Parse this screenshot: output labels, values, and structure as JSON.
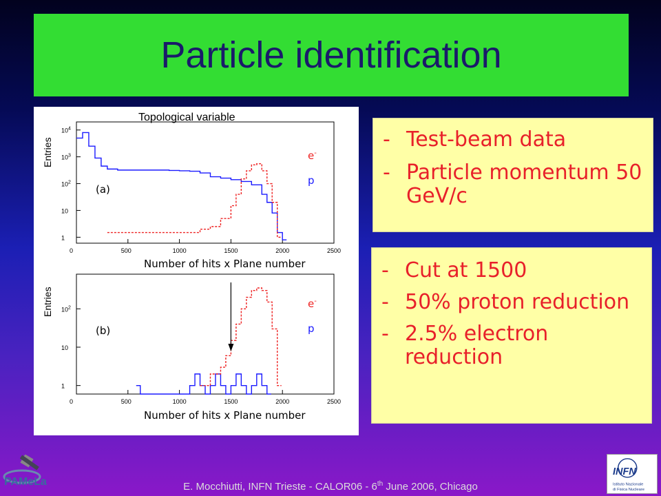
{
  "slide": {
    "title": "Particle identification",
    "footer": {
      "author": "E. Mocchiutti, INFN Trieste - CALOR06 - 6",
      "sup": "th",
      "rest": " June 2006, Chicago"
    },
    "logo_left_text": "PAMeLa",
    "logo_right_text": "INFN",
    "logo_right_subtext_1": "Istituto Nazionale",
    "logo_right_subtext_2": "di Fisica Nucleare"
  },
  "figure": {
    "header": "Topological variable",
    "panel_a": {
      "label": "(a)",
      "ylabel": "Entries",
      "xlabel": "Number of hits x Plane number",
      "yticks": [
        "10",
        "10",
        "10",
        "10",
        "1"
      ],
      "ytick_sups": [
        "4",
        "3",
        "2",
        "",
        ""
      ],
      "xticks": [
        "0",
        "500",
        "1000",
        "1500",
        "2000",
        "2500"
      ],
      "legend_e": "e",
      "legend_e_sup": "-",
      "legend_p": "p"
    },
    "panel_b": {
      "label": "(b)",
      "ylabel": "Entries",
      "xlabel": "Number of hits x Plane number",
      "yticks": [
        "10",
        "10",
        "1"
      ],
      "ytick_sups": [
        "2",
        "",
        ""
      ],
      "xticks": [
        "0",
        "500",
        "1000",
        "1500",
        "2000",
        "2500"
      ],
      "legend_e": "e",
      "legend_e_sup": "-",
      "legend_p": "p"
    }
  },
  "box1": {
    "items": [
      {
        "dash": "-",
        "text": "Test-beam data"
      },
      {
        "dash": "-",
        "text": "Particle momentum 50 GeV/c"
      }
    ]
  },
  "box2": {
    "items": [
      {
        "dash": "-",
        "text": "Cut at 1500"
      },
      {
        "dash": "-",
        "text": "50% proton reduction"
      },
      {
        "dash": "-",
        "text": "2.5% electron reduction"
      }
    ]
  },
  "colors": {
    "title_bg": "#33dd33",
    "title_text": "#1a1a6a",
    "box_bg": "#ffffa6",
    "box_text": "#e8202a",
    "proton_line": "#1a1aff",
    "electron_line": "#ee2222"
  },
  "chart_data": [
    {
      "type": "line",
      "title": "Topological variable",
      "xlabel": "Number of hits x Plane number",
      "ylabel": "Entries",
      "xlim": [
        0,
        2500
      ],
      "yscale": "log",
      "ylim": [
        0.6,
        20000
      ],
      "series": [
        {
          "name": "p",
          "x": [
            0,
            60,
            120,
            180,
            240,
            300,
            400,
            500,
            600,
            700,
            800,
            900,
            1000,
            1100,
            1200,
            1300,
            1400,
            1500,
            1600,
            1700,
            1800,
            1850,
            1900,
            1950,
            2000
          ],
          "y": [
            5000,
            8000,
            2500,
            900,
            450,
            350,
            320,
            320,
            320,
            320,
            320,
            310,
            300,
            290,
            250,
            180,
            160,
            140,
            120,
            90,
            40,
            20,
            8,
            1.5,
            0.8
          ]
        },
        {
          "name": "e-",
          "x": [
            300,
            500,
            700,
            900,
            1100,
            1200,
            1300,
            1400,
            1500,
            1550,
            1600,
            1650,
            1700,
            1750,
            1800,
            1850,
            1900,
            1950
          ],
          "y": [
            1.5,
            1.5,
            1.5,
            1.5,
            1.5,
            2,
            2.5,
            5,
            15,
            40,
            150,
            300,
            500,
            550,
            300,
            100,
            20,
            1
          ]
        }
      ]
    },
    {
      "type": "line",
      "xlabel": "Number of hits x Plane number",
      "ylabel": "Entries",
      "xlim": [
        0,
        2500
      ],
      "yscale": "log",
      "ylim": [
        0.6,
        800
      ],
      "annotations": [
        {
          "type": "arrow",
          "x": 1500,
          "text": ""
        }
      ],
      "series": [
        {
          "name": "p",
          "x": [
            580,
            620,
            1100,
            1150,
            1200,
            1250,
            1300,
            1350,
            1400,
            1450,
            1500,
            1550,
            1600,
            1650,
            1700,
            1750,
            1800,
            1850
          ],
          "y": [
            1,
            0.6,
            1,
            2,
            1,
            0.6,
            1,
            2,
            1,
            0.6,
            1,
            2,
            1,
            0.6,
            1,
            2,
            1,
            0.6
          ]
        },
        {
          "name": "e-",
          "x": [
            1200,
            1300,
            1400,
            1450,
            1500,
            1550,
            1600,
            1650,
            1700,
            1750,
            1800,
            1850,
            1900,
            1950
          ],
          "y": [
            1,
            2,
            3,
            6,
            15,
            40,
            100,
            200,
            300,
            350,
            300,
            150,
            30,
            1
          ]
        }
      ]
    }
  ]
}
